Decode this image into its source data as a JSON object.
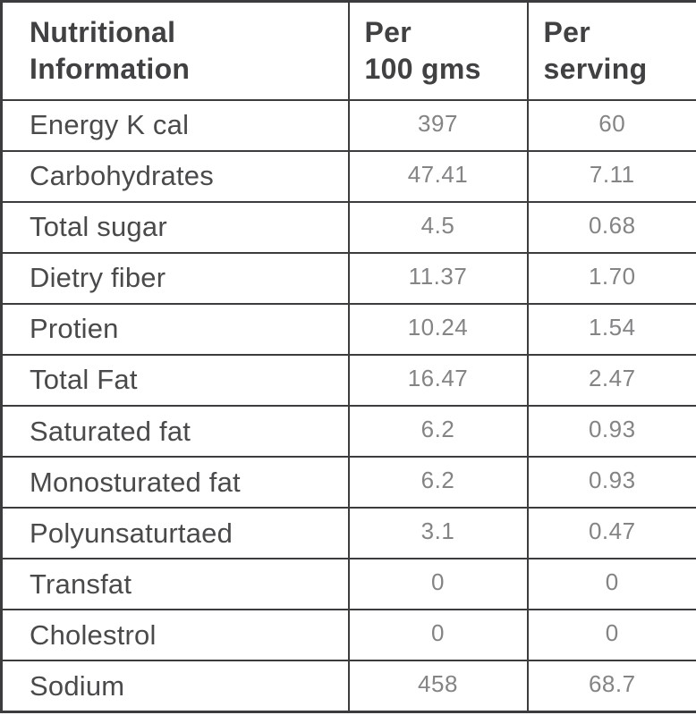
{
  "colors": {
    "border": "#3c3c3e",
    "header_text": "#414144",
    "label_text": "#4a4a4d",
    "value_text": "#848487",
    "background": "#ffffff"
  },
  "table": {
    "headers": {
      "label": "Nutritional\nInformation",
      "per_100": "Per\n100 gms",
      "per_serving": "Per\nserving"
    },
    "rows": [
      {
        "label": "Energy K cal",
        "per_100": "397",
        "per_serving": "60"
      },
      {
        "label": "Carbohydrates",
        "per_100": "47.41",
        "per_serving": "7.11"
      },
      {
        "label": "Total sugar",
        "per_100": "4.5",
        "per_serving": "0.68"
      },
      {
        "label": "Dietry fiber",
        "per_100": "11.37",
        "per_serving": "1.70"
      },
      {
        "label": "Protien",
        "per_100": "10.24",
        "per_serving": "1.54"
      },
      {
        "label": "Total Fat",
        "per_100": "16.47",
        "per_serving": "2.47"
      },
      {
        "label": "Saturated fat",
        "per_100": "6.2",
        "per_serving": "0.93"
      },
      {
        "label": "Monosturated fat",
        "per_100": "6.2",
        "per_serving": "0.93"
      },
      {
        "label": "Polyunsaturtaed",
        "per_100": "3.1",
        "per_serving": "0.47"
      },
      {
        "label": "Transfat",
        "per_100": "0",
        "per_serving": "0"
      },
      {
        "label": "Cholestrol",
        "per_100": "0",
        "per_serving": "0"
      },
      {
        "label": "Sodium",
        "per_100": "458",
        "per_serving": "68.7"
      }
    ]
  },
  "chart_data": {
    "type": "table",
    "title": "Nutritional Information",
    "columns": [
      "Nutritional Information",
      "Per 100 gms",
      "Per serving"
    ],
    "rows": [
      [
        "Energy K cal",
        397,
        60
      ],
      [
        "Carbohydrates",
        47.41,
        7.11
      ],
      [
        "Total sugar",
        4.5,
        0.68
      ],
      [
        "Dietry fiber",
        11.37,
        1.7
      ],
      [
        "Protien",
        10.24,
        1.54
      ],
      [
        "Total Fat",
        16.47,
        2.47
      ],
      [
        "Saturated fat",
        6.2,
        0.93
      ],
      [
        "Monosturated fat",
        6.2,
        0.93
      ],
      [
        "Polyunsaturtaed",
        3.1,
        0.47
      ],
      [
        "Transfat",
        0,
        0
      ],
      [
        "Cholestrol",
        0,
        0
      ],
      [
        "Sodium",
        458,
        68.7
      ]
    ]
  }
}
